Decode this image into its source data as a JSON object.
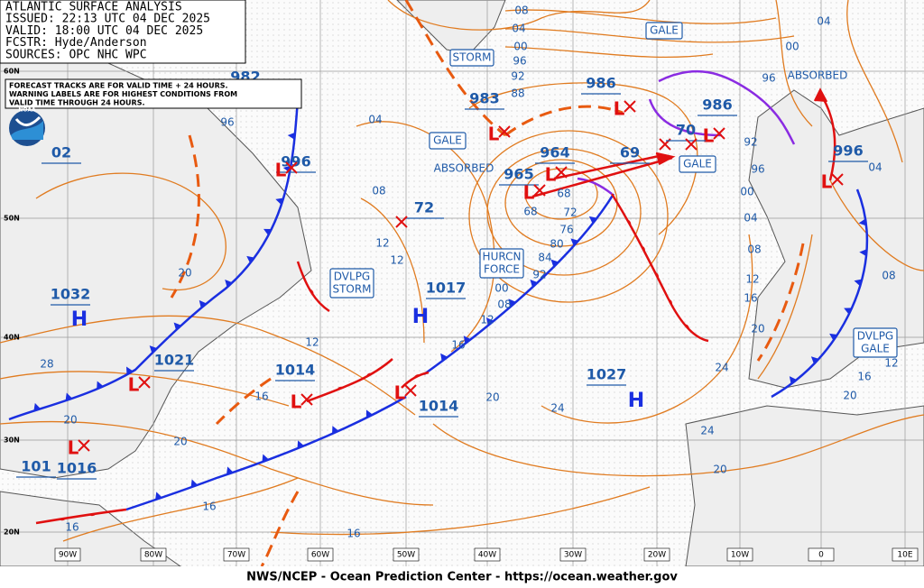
{
  "header": {
    "lines": [
      "ATLANTIC SURFACE ANALYSIS",
      "ISSUED:  22:13 UTC 04 DEC 2025",
      "VALID:   18:00 UTC 04 DEC 2025",
      "FCSTR:   Hyde/Anderson",
      "SOURCES: OPC NHC WPC"
    ]
  },
  "note": {
    "lines": [
      "FORECAST TRACKS ARE FOR VALID TIME + 24 HOURS.",
      "WARNING LABELS ARE FOR HIGHEST CONDITIONS FROM",
      "VALID TIME THROUGH 24 HOURS."
    ]
  },
  "logo": "NOAA",
  "footer": "NWS/NCEP - Ocean Prediction Center - https://ocean.weather.gov",
  "latitudes": [
    "60N",
    "50N",
    "40N",
    "30N",
    "20N"
  ],
  "longitudes": [
    "90W",
    "80W",
    "70W",
    "60W",
    "50W",
    "40W",
    "30W",
    "20W",
    "10W",
    "0",
    "10E"
  ],
  "pressure_centers": [
    {
      "value": "983",
      "symbol": "L"
    },
    {
      "value": "986",
      "symbol": "L"
    },
    {
      "value": "986",
      "symbol": "L"
    },
    {
      "value": "964",
      "symbol": "L"
    },
    {
      "value": "965",
      "symbol": "L"
    },
    {
      "value": "69",
      "symbol": "X"
    },
    {
      "value": "70",
      "symbol": "X"
    },
    {
      "value": "996",
      "symbol": "L"
    },
    {
      "value": "996",
      "symbol": "L"
    },
    {
      "value": "1032",
      "symbol": "H"
    },
    {
      "value": "1017",
      "symbol": "H"
    },
    {
      "value": "1027",
      "symbol": "H"
    },
    {
      "value": "1021",
      "symbol": "L"
    },
    {
      "value": "1014",
      "symbol": "L"
    },
    {
      "value": "1014",
      "symbol": "L"
    },
    {
      "value": "1016",
      "symbol": "L"
    },
    {
      "value": "101",
      "symbol": null
    },
    {
      "value": "982",
      "symbol": null
    },
    {
      "value": "02",
      "symbol": null
    },
    {
      "value": "72",
      "symbol": "X"
    }
  ],
  "warnings": [
    {
      "lines": [
        "STORM"
      ],
      "boxed": true
    },
    {
      "lines": [
        "GALE"
      ],
      "boxed": true
    },
    {
      "lines": [
        "GALE"
      ],
      "boxed": true
    },
    {
      "lines": [
        "GALE"
      ],
      "boxed": true
    },
    {
      "lines": [
        "DVLPG",
        "STORM"
      ],
      "boxed": true
    },
    {
      "lines": [
        "HURCN",
        "FORCE"
      ],
      "boxed": true
    },
    {
      "lines": [
        "DVLPG",
        "GALE"
      ],
      "boxed": true
    },
    {
      "lines": [
        "ABSORBED"
      ],
      "boxed": false
    },
    {
      "lines": [
        "ABSORBED"
      ],
      "boxed": false
    }
  ],
  "isobar_labels": [
    "08",
    "04",
    "00",
    "96",
    "92",
    "88",
    "04",
    "08",
    "96",
    "12",
    "12",
    "00",
    "08",
    "12",
    "16",
    "20",
    "24",
    "24",
    "24",
    "20",
    "16",
    "16",
    "16",
    "20",
    "28",
    "20",
    "12",
    "16",
    "20",
    "04",
    "00",
    "96",
    "92",
    "96",
    "00",
    "04",
    "08",
    "12",
    "16",
    "20",
    "20",
    "16",
    "08",
    "12",
    "04",
    "68",
    "72",
    "76",
    "80",
    "84",
    "92",
    "68"
  ]
}
